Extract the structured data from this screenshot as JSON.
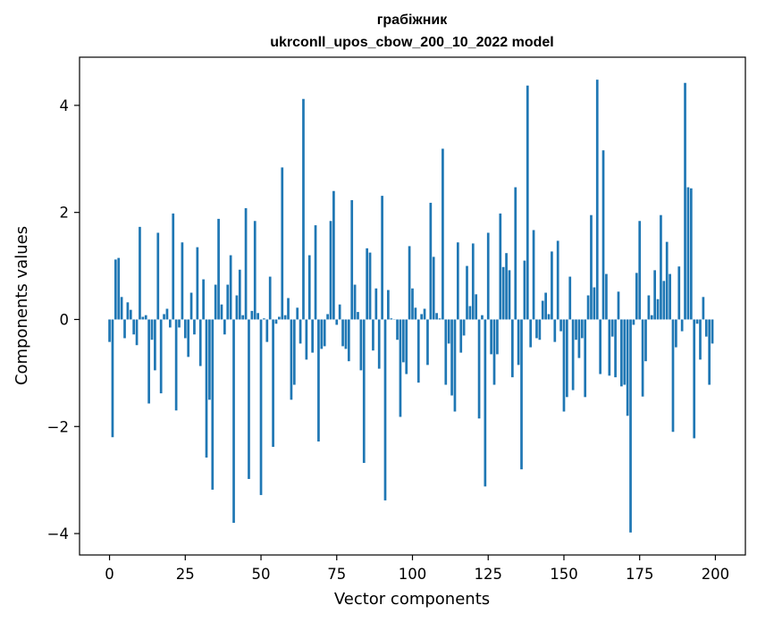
{
  "chart_data": {
    "type": "bar",
    "title": "грабіжник",
    "subtitle": "ukrconll_upos_cbow_200_10_2022 model",
    "xlabel": "Vector components",
    "ylabel": "Components values",
    "xlim": [
      -9.9,
      209.9
    ],
    "ylim": [
      -4.4,
      4.9
    ],
    "xticks": [
      0,
      25,
      50,
      75,
      100,
      125,
      150,
      175,
      200
    ],
    "yticks": [
      -4,
      -2,
      0,
      2,
      4
    ],
    "ytick_labels": [
      "−4",
      "−2",
      "0",
      "2",
      "4"
    ],
    "grid": false,
    "bar_color": "#1f77b4",
    "x": [
      0,
      1,
      2,
      3,
      4,
      5,
      6,
      7,
      8,
      9,
      10,
      11,
      12,
      13,
      14,
      15,
      16,
      17,
      18,
      19,
      20,
      21,
      22,
      23,
      24,
      25,
      26,
      27,
      28,
      29,
      30,
      31,
      32,
      33,
      34,
      35,
      36,
      37,
      38,
      39,
      40,
      41,
      42,
      43,
      44,
      45,
      46,
      47,
      48,
      49,
      50,
      51,
      52,
      53,
      54,
      55,
      56,
      57,
      58,
      59,
      60,
      61,
      62,
      63,
      64,
      65,
      66,
      67,
      68,
      69,
      70,
      71,
      72,
      73,
      74,
      75,
      76,
      77,
      78,
      79,
      80,
      81,
      82,
      83,
      84,
      85,
      86,
      87,
      88,
      89,
      90,
      91,
      92,
      93,
      94,
      95,
      96,
      97,
      98,
      99,
      100,
      101,
      102,
      103,
      104,
      105,
      106,
      107,
      108,
      109,
      110,
      111,
      112,
      113,
      114,
      115,
      116,
      117,
      118,
      119,
      120,
      121,
      122,
      123,
      124,
      125,
      126,
      127,
      128,
      129,
      130,
      131,
      132,
      133,
      134,
      135,
      136,
      137,
      138,
      139,
      140,
      141,
      142,
      143,
      144,
      145,
      146,
      147,
      148,
      149,
      150,
      151,
      152,
      153,
      154,
      155,
      156,
      157,
      158,
      159,
      160,
      161,
      162,
      163,
      164,
      165,
      166,
      167,
      168,
      169,
      170,
      171,
      172,
      173,
      174,
      175,
      176,
      177,
      178,
      179,
      180,
      181,
      182,
      183,
      184,
      185,
      186,
      187,
      188,
      189,
      190,
      191,
      192,
      193,
      194,
      195,
      196,
      197,
      198,
      199
    ],
    "values": [
      -0.42,
      -2.2,
      1.12,
      1.15,
      0.42,
      -0.35,
      0.32,
      0.18,
      -0.28,
      -0.48,
      1.73,
      0.05,
      0.08,
      -1.57,
      -0.38,
      -0.95,
      1.62,
      -1.38,
      0.1,
      0.2,
      -0.15,
      1.98,
      -1.7,
      -0.15,
      1.44,
      -0.35,
      -0.7,
      0.5,
      -0.28,
      1.35,
      -0.87,
      0.75,
      -2.58,
      -1.5,
      -3.18,
      0.65,
      1.88,
      0.28,
      -0.28,
      0.65,
      1.2,
      -3.8,
      0.45,
      0.93,
      0.08,
      2.08,
      -2.98,
      0.16,
      1.84,
      0.12,
      -3.28,
      0.02,
      -0.42,
      0.8,
      -2.38,
      -0.08,
      0.05,
      2.84,
      0.08,
      0.4,
      -1.5,
      -1.22,
      0.22,
      -0.45,
      4.12,
      -0.75,
      1.2,
      -0.62,
      1.76,
      -2.28,
      -0.55,
      -0.5,
      0.1,
      1.84,
      2.4,
      -0.1,
      0.28,
      -0.5,
      -0.55,
      -0.78,
      2.23,
      0.65,
      0.14,
      -0.95,
      -2.68,
      1.33,
      1.25,
      -0.58,
      0.58,
      -0.92,
      2.31,
      -3.38,
      0.55,
      0.02,
      0.0,
      -0.38,
      -1.82,
      -0.8,
      -1.02,
      1.37,
      0.58,
      0.22,
      -1.18,
      0.1,
      0.2,
      -0.85,
      2.18,
      1.17,
      0.12,
      0.02,
      3.19,
      -1.22,
      -0.45,
      -1.42,
      -1.72,
      1.44,
      -0.62,
      -0.3,
      1.0,
      0.25,
      1.42,
      0.47,
      -1.85,
      0.08,
      -3.12,
      1.62,
      -0.65,
      -1.22,
      -0.65,
      1.98,
      0.98,
      1.24,
      0.92,
      -1.08,
      2.47,
      -0.85,
      -2.8,
      1.1,
      4.37,
      -0.52,
      1.67,
      -0.35,
      -0.38,
      0.35,
      0.5,
      0.1,
      1.27,
      -0.42,
      1.47,
      -0.22,
      -1.72,
      -1.45,
      0.8,
      -1.32,
      -0.38,
      -0.72,
      -0.35,
      -1.45,
      0.45,
      1.95,
      0.6,
      4.48,
      -1.02,
      3.16,
      0.85,
      -1.05,
      -0.32,
      -1.08,
      0.52,
      -1.25,
      -1.22,
      -1.8,
      -3.98,
      -0.1,
      0.87,
      1.84,
      -1.44,
      -0.78,
      0.45,
      0.08,
      0.92,
      0.38,
      1.95,
      0.72,
      1.45,
      0.85,
      -2.1,
      -0.52,
      0.99,
      -0.22,
      4.42,
      2.47,
      2.45,
      -2.22,
      -0.08,
      -0.75,
      0.42,
      -0.32,
      -1.22,
      -0.45
    ]
  }
}
